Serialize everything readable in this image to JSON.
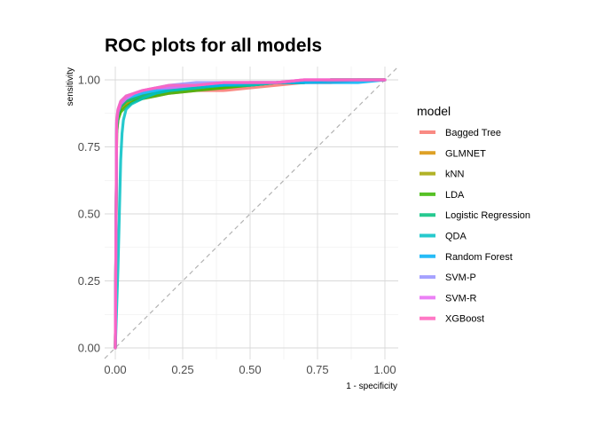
{
  "chart_data": {
    "type": "line",
    "title": "ROC plots for all models",
    "xlabel": "1 - specificity",
    "ylabel": "sensitivity",
    "xlim": [
      0,
      1
    ],
    "ylim": [
      0,
      1
    ],
    "xticks": [
      0,
      0.25,
      0.5,
      0.75,
      1
    ],
    "yticks": [
      0,
      0.25,
      0.5,
      0.75,
      1
    ],
    "xtick_labels": [
      "0.00",
      "0.25",
      "0.50",
      "0.75",
      "1.00"
    ],
    "ytick_labels": [
      "0.00",
      "0.25",
      "0.50",
      "0.75",
      "1.00"
    ],
    "grid": true,
    "reference_line": "diagonal",
    "legend": {
      "title": "model",
      "position": "right"
    },
    "series": [
      {
        "name": "Bagged Tree",
        "color": "#F8766D",
        "x": [
          0,
          0.005,
          0.01,
          0.02,
          0.04,
          0.07,
          0.1,
          0.15,
          0.2,
          0.3,
          0.4,
          0.5,
          0.6,
          0.7,
          0.8,
          0.9,
          1
        ],
        "y": [
          0,
          0.8,
          0.86,
          0.89,
          0.91,
          0.92,
          0.93,
          0.94,
          0.95,
          0.96,
          0.96,
          0.97,
          0.98,
          0.99,
          0.99,
          1,
          1
        ]
      },
      {
        "name": "GLMNET",
        "color": "#D89000",
        "x": [
          0,
          0.005,
          0.01,
          0.02,
          0.04,
          0.07,
          0.1,
          0.15,
          0.2,
          0.3,
          0.4,
          0.5,
          0.6,
          0.7,
          0.8,
          0.9,
          1
        ],
        "y": [
          0,
          0.82,
          0.87,
          0.9,
          0.92,
          0.93,
          0.94,
          0.95,
          0.96,
          0.97,
          0.98,
          0.98,
          0.99,
          0.99,
          1,
          1,
          1
        ]
      },
      {
        "name": "kNN",
        "color": "#A3A500",
        "x": [
          0,
          0.005,
          0.01,
          0.02,
          0.04,
          0.07,
          0.1,
          0.15,
          0.2,
          0.3,
          0.4,
          0.5,
          0.6,
          0.7,
          0.8,
          0.9,
          1
        ],
        "y": [
          0,
          0.81,
          0.86,
          0.89,
          0.91,
          0.92,
          0.93,
          0.95,
          0.96,
          0.97,
          0.97,
          0.98,
          0.99,
          0.99,
          1,
          1,
          1
        ]
      },
      {
        "name": "LDA",
        "color": "#39B600",
        "x": [
          0,
          0.005,
          0.01,
          0.02,
          0.04,
          0.07,
          0.1,
          0.15,
          0.2,
          0.3,
          0.4,
          0.5,
          0.6,
          0.7,
          0.8,
          0.9,
          1
        ],
        "y": [
          0,
          0.8,
          0.85,
          0.88,
          0.9,
          0.92,
          0.93,
          0.94,
          0.95,
          0.96,
          0.97,
          0.98,
          0.99,
          0.99,
          1,
          1,
          1
        ]
      },
      {
        "name": "Logistic Regression",
        "color": "#00BF7D",
        "x": [
          0,
          0.005,
          0.01,
          0.02,
          0.04,
          0.07,
          0.1,
          0.15,
          0.2,
          0.3,
          0.4,
          0.5,
          0.6,
          0.7,
          0.8,
          0.9,
          1
        ],
        "y": [
          0,
          0.82,
          0.87,
          0.9,
          0.92,
          0.93,
          0.94,
          0.95,
          0.96,
          0.97,
          0.98,
          0.98,
          0.99,
          0.99,
          1,
          1,
          1
        ]
      },
      {
        "name": "QDA",
        "color": "#00BFC4",
        "x": [
          0,
          0.01,
          0.02,
          0.025,
          0.03,
          0.04,
          0.06,
          0.1,
          0.15,
          0.2,
          0.3,
          0.4,
          0.5,
          0.6,
          0.7,
          0.8,
          0.9,
          1
        ],
        "y": [
          0,
          0.3,
          0.7,
          0.8,
          0.85,
          0.89,
          0.91,
          0.93,
          0.95,
          0.96,
          0.97,
          0.98,
          0.98,
          0.99,
          0.99,
          1,
          1,
          1
        ]
      },
      {
        "name": "Random Forest",
        "color": "#00B0F6",
        "x": [
          0,
          0.005,
          0.01,
          0.02,
          0.04,
          0.07,
          0.1,
          0.15,
          0.2,
          0.3,
          0.4,
          0.5,
          0.6,
          0.7,
          0.8,
          0.9,
          1
        ],
        "y": [
          0,
          0.84,
          0.88,
          0.91,
          0.93,
          0.94,
          0.95,
          0.96,
          0.97,
          0.98,
          0.98,
          0.99,
          0.99,
          0.99,
          0.99,
          0.99,
          1
        ]
      },
      {
        "name": "SVM-P",
        "color": "#9590FF",
        "x": [
          0,
          0.005,
          0.01,
          0.02,
          0.04,
          0.07,
          0.1,
          0.15,
          0.2,
          0.3,
          0.4,
          0.5,
          0.6,
          0.7,
          0.8,
          0.9,
          1
        ],
        "y": [
          0,
          0.85,
          0.89,
          0.92,
          0.94,
          0.95,
          0.96,
          0.97,
          0.98,
          0.99,
          0.99,
          0.99,
          0.99,
          1,
          1,
          1,
          1
        ]
      },
      {
        "name": "SVM-R",
        "color": "#E76BF3",
        "x": [
          0,
          0.005,
          0.01,
          0.02,
          0.04,
          0.07,
          0.1,
          0.15,
          0.2,
          0.3,
          0.4,
          0.5,
          0.6,
          0.7,
          0.8,
          0.9,
          1
        ],
        "y": [
          0,
          0.84,
          0.88,
          0.91,
          0.93,
          0.95,
          0.96,
          0.97,
          0.97,
          0.98,
          0.99,
          0.99,
          0.99,
          1,
          1,
          1,
          1
        ]
      },
      {
        "name": "XGBoost",
        "color": "#FF62BC",
        "x": [
          0,
          0.005,
          0.01,
          0.02,
          0.04,
          0.07,
          0.1,
          0.15,
          0.2,
          0.3,
          0.4,
          0.5,
          0.6,
          0.7,
          0.8,
          0.9,
          1
        ],
        "y": [
          0,
          0.85,
          0.89,
          0.92,
          0.94,
          0.95,
          0.96,
          0.97,
          0.98,
          0.98,
          0.99,
          0.99,
          0.99,
          1,
          1,
          1,
          1
        ]
      }
    ]
  }
}
